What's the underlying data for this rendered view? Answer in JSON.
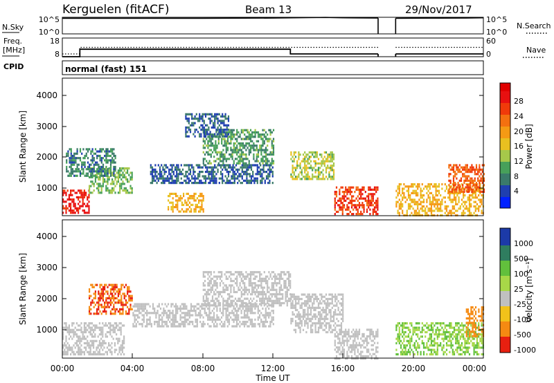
{
  "header": {
    "station": "Kerguelen (fitACF)",
    "beam": "Beam 13",
    "date": "29/Nov/2017"
  },
  "colors": {
    "text": "#000000",
    "frame": "#000000",
    "missing": "#ffffff",
    "ground_scatter": "#c0c0c0"
  },
  "panels": {
    "nsky": {
      "left_label": "N.Sky",
      "right_label": "N.Search",
      "left_ticks": [
        "10^5",
        "10^0"
      ],
      "right_ticks": [
        "10^5",
        "10^0"
      ]
    },
    "freq": {
      "left_label_line1": "Freq.",
      "left_label_line2": "[MHz]",
      "right_label": "Nave",
      "left_ticks": [
        "18",
        "8"
      ],
      "right_ticks": [
        "60",
        "0"
      ],
      "cpid_label": "CPID",
      "cpid_text": "normal (fast) 151"
    },
    "power": {
      "ylabel": "Slant Range [km]",
      "yticks": [
        "1000",
        "2000",
        "3000",
        "4000"
      ],
      "colorbar_label": "Power [dB]",
      "colorbar_ticks": [
        "4",
        "8",
        "12",
        "16",
        "20",
        "24",
        "28"
      ]
    },
    "velocity": {
      "ylabel": "Slant Range [km]",
      "yticks": [
        "1000",
        "2000",
        "3000",
        "4000"
      ],
      "colorbar_label": "Velocity [m s⁻¹]",
      "colorbar_ticks": [
        "1000",
        "500",
        "100",
        "25",
        "-25",
        "-100",
        "-500",
        "-1000"
      ]
    },
    "xaxis": {
      "ticks": [
        "00:00",
        "04:00",
        "08:00",
        "12:00",
        "16:00",
        "20:00",
        "00:00"
      ],
      "label": "Time UT"
    }
  },
  "chart_data": [
    {
      "type": "line",
      "panel": "N.Sky / N.Search",
      "y_scale": "log",
      "ylim": [
        1,
        100000
      ],
      "xlim_hours": [
        0,
        24
      ],
      "data_gaps_hours": [
        [
          18.0,
          19.0
        ]
      ],
      "series": [
        {
          "x": [
            0,
            4,
            8,
            12,
            14,
            15,
            16,
            18
          ],
          "y": [
            50000,
            50000,
            50000,
            60000,
            80000,
            90000,
            70000,
            60000
          ]
        },
        {
          "x": [
            19,
            21,
            23,
            24
          ],
          "y": [
            50000,
            55000,
            60000,
            70000
          ]
        }
      ]
    },
    {
      "type": "line",
      "panel": "Freq. / Nave",
      "ylim": [
        8,
        18
      ],
      "xlim_hours": [
        0,
        24
      ],
      "data_gaps_hours": [
        [
          18.0,
          19.0
        ]
      ],
      "series": [
        {
          "x": [
            0,
            1,
            1,
            13,
            13,
            18,
            19,
            24
          ],
          "y": [
            8,
            8,
            12,
            12,
            9.5,
            9.5,
            9.5,
            9.5
          ]
        },
        {
          "x": [
            0,
            1,
            1,
            18,
            19,
            24
          ],
          "y": [
            9.5,
            9.5,
            13,
            13,
            13,
            13
          ]
        }
      ]
    },
    {
      "type": "heatmap",
      "panel": "Power",
      "xlim_hours": [
        0,
        24
      ],
      "ylim": [
        180,
        4500
      ],
      "zlim": [
        0,
        30
      ],
      "data_gaps_hours": [
        [
          18.0,
          19.0
        ]
      ],
      "regions": [
        {
          "t": [
            0.0,
            1.5
          ],
          "r": [
            300,
            1000
          ],
          "z": 28
        },
        {
          "t": [
            1.5,
            4.0
          ],
          "r": [
            900,
            1700
          ],
          "z": 12
        },
        {
          "t": [
            0.2,
            3.0
          ],
          "r": [
            1400,
            2300
          ],
          "z": 8
        },
        {
          "t": [
            6.0,
            8.0
          ],
          "r": [
            300,
            900
          ],
          "z": 18
        },
        {
          "t": [
            5.0,
            12.0
          ],
          "r": [
            1200,
            1800
          ],
          "z": 6
        },
        {
          "t": [
            8.0,
            12.0
          ],
          "r": [
            1800,
            2900
          ],
          "z": 10
        },
        {
          "t": [
            7.0,
            9.5
          ],
          "r": [
            2700,
            3400
          ],
          "z": 6
        },
        {
          "t": [
            13.0,
            15.5
          ],
          "r": [
            1300,
            2200
          ],
          "z": 14
        },
        {
          "t": [
            15.5,
            18.0
          ],
          "r": [
            200,
            1100
          ],
          "z": 26
        },
        {
          "t": [
            19.0,
            24.0
          ],
          "r": [
            200,
            1200
          ],
          "z": 18
        },
        {
          "t": [
            22.0,
            24.0
          ],
          "r": [
            900,
            1800
          ],
          "z": 24
        }
      ]
    },
    {
      "type": "heatmap",
      "panel": "Velocity",
      "xlim_hours": [
        0,
        24
      ],
      "ylim": [
        180,
        4500
      ],
      "zlim": [
        -1000,
        1000
      ],
      "data_gaps_hours": [
        [
          18.0,
          19.0
        ]
      ],
      "regions": [
        {
          "t": [
            0.0,
            3.5
          ],
          "r": [
            300,
            1300
          ],
          "z": 0
        },
        {
          "t": [
            1.5,
            4.0
          ],
          "r": [
            1600,
            2500
          ],
          "z": -500
        },
        {
          "t": [
            4.0,
            12.0
          ],
          "r": [
            1200,
            1900
          ],
          "z": 0
        },
        {
          "t": [
            8.0,
            13.0
          ],
          "r": [
            1800,
            2900
          ],
          "z": 0
        },
        {
          "t": [
            13.0,
            16.0
          ],
          "r": [
            1000,
            2200
          ],
          "z": 0
        },
        {
          "t": [
            15.5,
            18.0
          ],
          "r": [
            200,
            1100
          ],
          "z": 0
        },
        {
          "t": [
            19.0,
            24.0
          ],
          "r": [
            300,
            1300
          ],
          "z": 60
        },
        {
          "t": [
            23.0,
            24.0
          ],
          "r": [
            900,
            1800
          ],
          "z": -300
        }
      ]
    }
  ]
}
